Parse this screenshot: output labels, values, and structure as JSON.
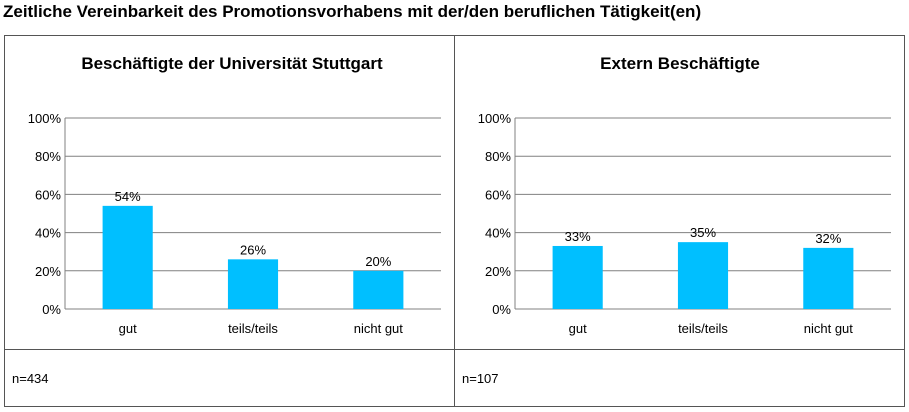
{
  "page_title": "Zeitliche Vereinbarkeit des Promotionsvorhabens mit der/den beruflichen Tätigkeit(en)",
  "colors": {
    "bar": "#00BFFF",
    "grid": "#808080",
    "axis": "#808080",
    "border": "#555555"
  },
  "chart_data": [
    {
      "type": "bar",
      "title": "Beschäftigte der Universität Stuttgart",
      "categories": [
        "gut",
        "teils/teils",
        "nicht gut"
      ],
      "values": [
        54,
        26,
        20
      ],
      "data_labels": [
        "54%",
        "26%",
        "20%"
      ],
      "y_ticks": [
        "0%",
        "20%",
        "40%",
        "60%",
        "80%",
        "100%"
      ],
      "ylim": [
        0,
        100
      ],
      "grid": true,
      "n": "n=434"
    },
    {
      "type": "bar",
      "title": "Extern Beschäftigte",
      "categories": [
        "gut",
        "teils/teils",
        "nicht gut"
      ],
      "values": [
        33,
        35,
        32
      ],
      "data_labels": [
        "33%",
        "35%",
        "32%"
      ],
      "y_ticks": [
        "0%",
        "20%",
        "40%",
        "60%",
        "80%",
        "100%"
      ],
      "ylim": [
        0,
        100
      ],
      "grid": true,
      "n": "n=107"
    }
  ]
}
